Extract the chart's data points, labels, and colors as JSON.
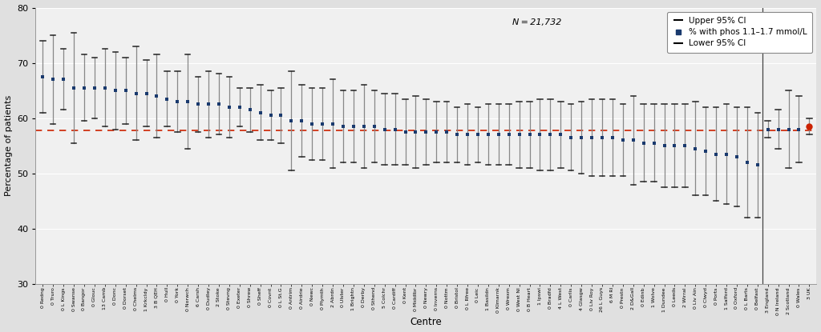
{
  "centres": [
    "0 Redng",
    "0 Truro",
    "0 L Kings",
    "0 Swanse",
    "0 Bangor",
    "0 Glouc",
    "13 Camb",
    "0 Donc",
    "0 Dorset",
    "0 Chelms",
    "1 Krkcldy",
    "3 B QEH",
    "0 Hull",
    "0 York",
    "0 Norwch",
    "6 Carsh",
    "0 Dudley",
    "2 Stoke",
    "0 Stevng",
    "0 Exeter",
    "0 Shrew",
    "0 Sheff",
    "0 Covnt",
    "0 L St.G",
    "0 Antrim",
    "0 Airdrie",
    "0 Newc",
    "0 Plymth",
    "2 Abrdn",
    "0 Ulster",
    "1 Brightn",
    "0 Derby",
    "0 Sthend",
    "5 Colchr",
    "0 Cardiff",
    "0 Kent",
    "0 Middlbr",
    "0 Newry",
    "0 Inverns",
    "0 Nottm",
    "0 Bristol",
    "0 L Rfree",
    "0 Leic",
    "1 Basildn",
    "0 Klmarnk",
    "0 Wrexm",
    "0 West NI",
    "0 B Heart",
    "1 Ipswi",
    "0 Bradfd",
    "4 L West",
    "0 Carlis",
    "4 Glasgw",
    "0 Liv Roy",
    "26 L Guys",
    "6 M Rl",
    "0 Prestn",
    "2 D&Gall",
    "0 Edinb",
    "1 Wolve",
    "1 Dundee",
    "0 Leeds",
    "2 Wirral",
    "0 Liv Ain",
    "0 Clwyd",
    "0 Ports",
    "1 Salford",
    "0 Oxford",
    "0 L Barts",
    "0 Belfast",
    "3 England",
    "0 N Ireland",
    "2 Scotland",
    "0 Wales",
    "3 UK"
  ],
  "values": [
    67.5,
    67.0,
    67.0,
    65.5,
    65.5,
    65.5,
    65.5,
    65.0,
    65.0,
    64.5,
    64.5,
    64.0,
    63.5,
    63.0,
    63.0,
    62.5,
    62.5,
    62.5,
    62.0,
    62.0,
    61.5,
    61.0,
    60.5,
    60.5,
    59.5,
    59.5,
    59.0,
    59.0,
    59.0,
    58.5,
    58.5,
    58.5,
    58.5,
    58.0,
    58.0,
    57.5,
    57.5,
    57.5,
    57.5,
    57.5,
    57.0,
    57.0,
    57.0,
    57.0,
    57.0,
    57.0,
    57.0,
    57.0,
    57.0,
    57.0,
    57.0,
    56.5,
    56.5,
    56.5,
    56.5,
    56.5,
    56.0,
    56.0,
    55.5,
    55.5,
    55.0,
    55.0,
    55.0,
    54.5,
    54.0,
    53.5,
    53.5,
    53.0,
    52.0,
    51.5,
    58.0,
    58.0,
    58.0,
    58.0,
    58.5
  ],
  "upper_ci": [
    74.0,
    75.0,
    72.5,
    75.5,
    71.5,
    71.0,
    72.5,
    72.0,
    71.0,
    73.0,
    70.5,
    71.5,
    68.5,
    68.5,
    71.5,
    67.5,
    68.5,
    68.0,
    67.5,
    65.5,
    65.5,
    66.0,
    65.0,
    65.5,
    68.5,
    66.0,
    65.5,
    65.5,
    67.0,
    65.0,
    65.0,
    66.0,
    65.0,
    64.5,
    64.5,
    63.5,
    64.0,
    63.5,
    63.0,
    63.0,
    62.0,
    62.5,
    62.0,
    62.5,
    62.5,
    62.5,
    63.0,
    63.0,
    63.5,
    63.5,
    63.0,
    62.5,
    63.0,
    63.5,
    63.5,
    63.5,
    62.5,
    64.0,
    62.5,
    62.5,
    62.5,
    62.5,
    62.5,
    63.0,
    62.0,
    62.0,
    62.5,
    62.0,
    62.0,
    61.0,
    59.5,
    61.5,
    65.0,
    64.0,
    60.0
  ],
  "lower_ci": [
    61.0,
    59.0,
    61.5,
    55.5,
    59.5,
    60.0,
    58.5,
    58.0,
    59.0,
    56.0,
    58.5,
    56.5,
    58.5,
    57.5,
    54.5,
    57.5,
    56.5,
    57.0,
    56.5,
    58.5,
    57.5,
    56.0,
    56.0,
    55.5,
    50.5,
    53.0,
    52.5,
    52.5,
    51.0,
    52.0,
    52.0,
    51.0,
    52.0,
    51.5,
    51.5,
    51.5,
    51.0,
    51.5,
    52.0,
    52.0,
    52.0,
    51.5,
    52.0,
    51.5,
    51.5,
    51.5,
    51.0,
    51.0,
    50.5,
    50.5,
    51.0,
    50.5,
    50.0,
    49.5,
    49.5,
    49.5,
    49.5,
    48.0,
    48.5,
    48.5,
    47.5,
    47.5,
    47.5,
    46.0,
    46.0,
    45.0,
    44.5,
    44.0,
    42.0,
    42.0,
    56.5,
    54.5,
    51.0,
    52.0,
    57.0
  ],
  "reference_line": 57.8,
  "ylim": [
    30,
    80
  ],
  "yticks": [
    30,
    40,
    50,
    60,
    70,
    80
  ],
  "ylabel": "Percentage of patients",
  "xlabel": "Centre",
  "annotation": "N = 21,732",
  "outer_bg_color": "#e0e0e0",
  "inner_bg_color": "#f0f0f0",
  "point_color": "#1a3a6e",
  "ci_line_color": "#888888",
  "ci_tick_color": "#222222",
  "ref_color": "#cc2200",
  "last_point_color": "#cc2200",
  "sep_centre": "3 England",
  "legend_upper": "Upper 95% CI",
  "legend_phos": "% with phos 1.1–1.7 mmol/L",
  "legend_lower": "Lower 95% CI"
}
